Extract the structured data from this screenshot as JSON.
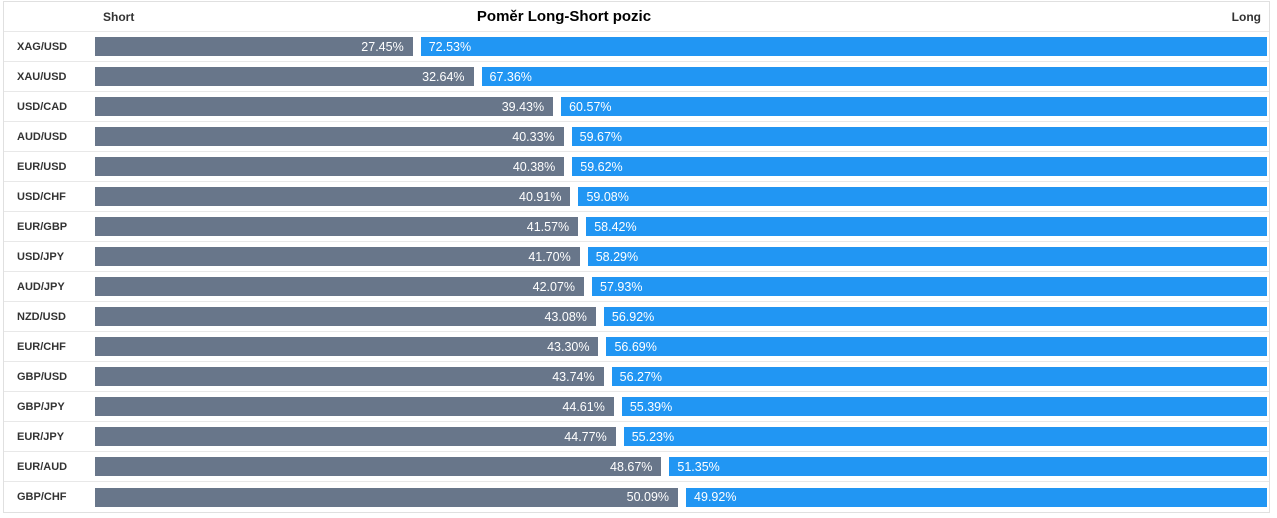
{
  "chart": {
    "title": "Poměr Long-Short pozic",
    "short_header": "Short",
    "long_header": "Long"
  },
  "chart_data": {
    "type": "bar",
    "orientation": "horizontal",
    "stacked": true,
    "title": "Poměr Long-Short pozic",
    "legend_position": "top-edges",
    "grid": false,
    "value_suffix": "%",
    "axis_range": [
      0,
      100
    ],
    "categories": [
      "XAG/USD",
      "XAU/USD",
      "USD/CAD",
      "AUD/USD",
      "EUR/USD",
      "USD/CHF",
      "EUR/GBP",
      "USD/JPY",
      "AUD/JPY",
      "NZD/USD",
      "EUR/CHF",
      "GBP/USD",
      "GBP/JPY",
      "EUR/JPY",
      "EUR/AUD",
      "GBP/CHF"
    ],
    "series": [
      {
        "name": "Short",
        "color": "#68768a",
        "values": [
          27.45,
          32.64,
          39.43,
          40.33,
          40.38,
          40.91,
          41.57,
          41.7,
          42.07,
          43.08,
          43.3,
          43.74,
          44.61,
          44.77,
          48.67,
          50.09
        ]
      },
      {
        "name": "Long",
        "color": "#2196f3",
        "values": [
          72.53,
          67.36,
          60.57,
          59.67,
          59.62,
          59.08,
          58.42,
          58.29,
          57.93,
          56.92,
          56.69,
          56.27,
          55.39,
          55.23,
          51.35,
          49.92
        ]
      }
    ]
  }
}
